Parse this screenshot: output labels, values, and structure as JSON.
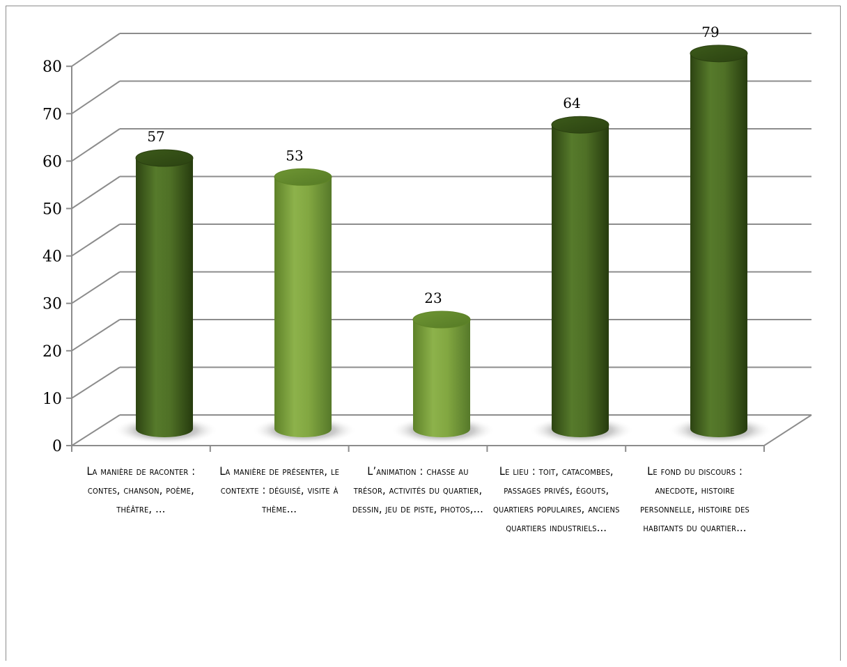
{
  "chart_data": {
    "type": "bar",
    "style": "3d-cylinder",
    "categories": [
      "La manière de raconter : contes, chanson, poème, théâtre, …",
      "La manière de présenter, le contexte : déguisé, visite à thème…",
      "L’animation : chasse au trésor, activités du quartier, dessin, jeu de piste, photos,…",
      "Le lieu : toit, catacombes, passages privés, égouts, quartiers populaires, anciens quartiers industriels…",
      "Le fond du discours : anecdote, histoire personnelle, histoire des habitants du quartier…"
    ],
    "values": [
      57,
      53,
      23,
      64,
      79
    ],
    "data_labels": [
      "57",
      "53",
      "23",
      "64",
      "79"
    ],
    "bar_colors": [
      "#4a6b22",
      "#7fa23e",
      "#7fa23e",
      "#4a6b22",
      "#4a6b22"
    ],
    "ylim": [
      0,
      80
    ],
    "yticks": [
      "0",
      "10",
      "20",
      "30",
      "40",
      "50",
      "60",
      "70",
      "80"
    ],
    "grid": true,
    "legend": "none"
  }
}
